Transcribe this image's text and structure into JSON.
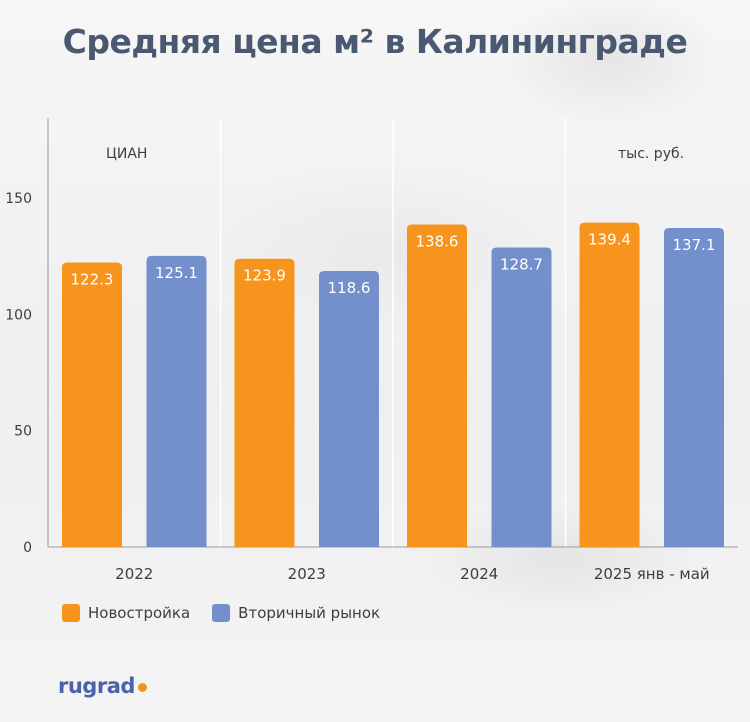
{
  "title": "Средняя цена м² в Калининграде",
  "source_label": "ЦИАН",
  "unit_label": "тыс. руб.",
  "logo": "rugrad",
  "colors": {
    "new": "#f7941d",
    "secondary": "#7490cc",
    "title": "#4a5872"
  },
  "chart_data": {
    "type": "bar",
    "title": "Средняя цена м² в Калининграде",
    "categories": [
      "2022",
      "2023",
      "2024",
      "2025 янв - май"
    ],
    "series": [
      {
        "name": "Новостройка",
        "values": [
          122.3,
          123.9,
          138.6,
          139.4
        ],
        "color": "#f7941d"
      },
      {
        "name": "Вторичный рынок",
        "values": [
          125.1,
          118.6,
          128.7,
          137.1
        ],
        "color": "#7490cc"
      }
    ],
    "yticks": [
      0,
      50,
      100,
      150
    ],
    "ylim": [
      0,
      150
    ],
    "xlabel": "",
    "ylabel": "тыс. руб.",
    "grid": "vertical separators",
    "legend": "bottom-left"
  }
}
